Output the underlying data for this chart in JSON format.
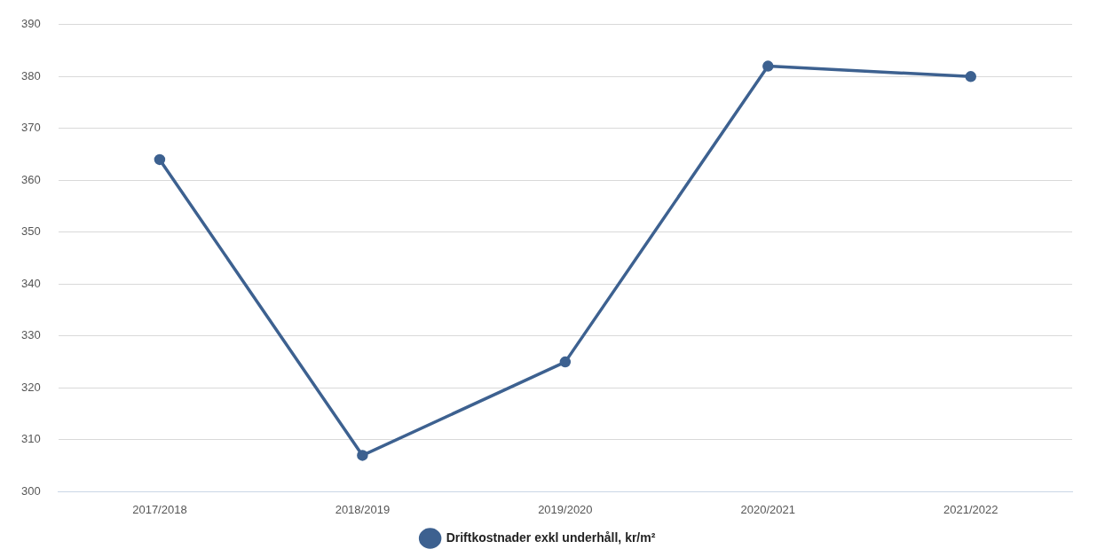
{
  "chart_data": {
    "type": "line",
    "categories": [
      "2017/2018",
      "2018/2019",
      "2019/2020",
      "2020/2021",
      "2021/2022"
    ],
    "series": [
      {
        "name": "Driftkostnader exkl underhåll, kr/m²",
        "color": "#3d6190",
        "values": [
          364,
          307,
          325,
          382,
          380
        ]
      }
    ],
    "ylim": [
      300,
      390
    ],
    "yticks": [
      300,
      310,
      320,
      330,
      340,
      350,
      360,
      370,
      380,
      390
    ],
    "grid": "y",
    "legend": "bottom",
    "marker": "circle",
    "line_style": "solid"
  }
}
